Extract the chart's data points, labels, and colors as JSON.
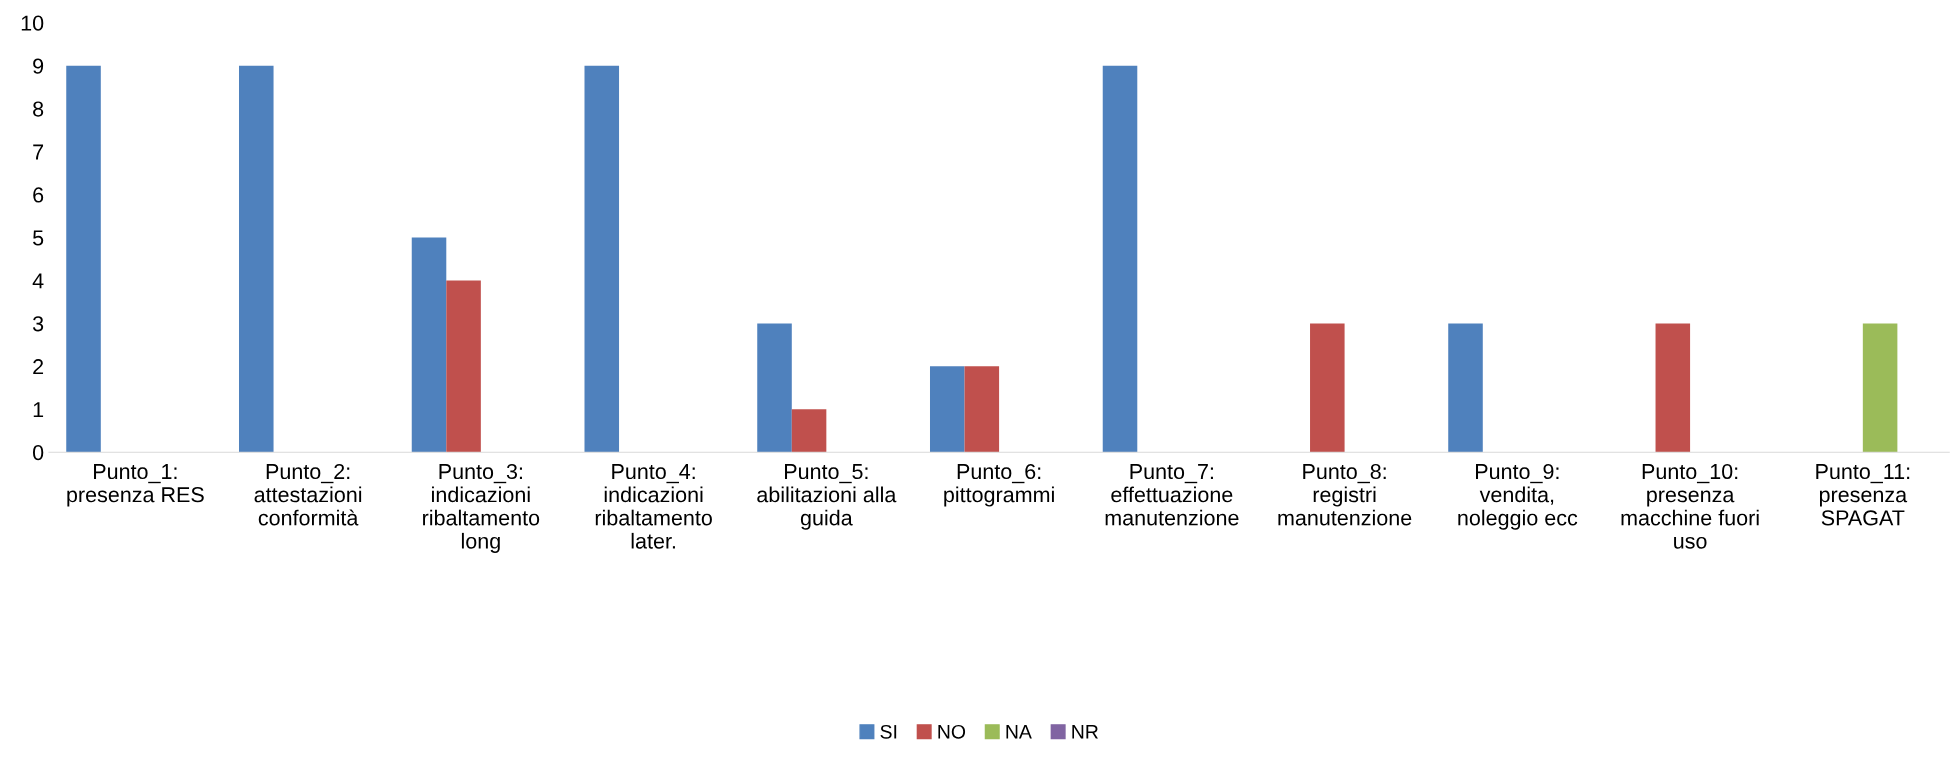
{
  "chart_data": {
    "type": "bar",
    "categories": [
      "Punto_1:\npresenza RES",
      "Punto_2:\nattestazioni\nconformità",
      "Punto_3:\nindicazioni\nribaltamento\nlong",
      "Punto_4:\nindicazioni\nribaltamento\nlater.",
      "Punto_5:\nabilitazioni alla\nguida",
      "Punto_6:\npittogrammi",
      "Punto_7:\neffettuazione\nmanutenzione",
      "Punto_8:\nregistri\nmanutenzione",
      "Punto_9:\nvendita,\nnoleggio ecc",
      "Punto_10:\npresenza\nmacchine fuori\nuso",
      "Punto_11:\npresenza\nSPAGAT"
    ],
    "series": [
      {
        "name": "SI",
        "color": "#4f81bd",
        "values": [
          9,
          9,
          5,
          9,
          3,
          2,
          9,
          0,
          3,
          0,
          0
        ]
      },
      {
        "name": "NO",
        "color": "#c0504d",
        "values": [
          0,
          0,
          4,
          0,
          1,
          2,
          0,
          3,
          0,
          3,
          0
        ]
      },
      {
        "name": "NA",
        "color": "#9bbb59",
        "values": [
          0,
          0,
          0,
          0,
          0,
          0,
          0,
          0,
          0,
          0,
          3
        ]
      },
      {
        "name": "NR",
        "color": "#8064a2",
        "values": [
          0,
          0,
          0,
          0,
          0,
          0,
          0,
          0,
          0,
          0,
          0
        ]
      }
    ],
    "ylim": [
      0,
      10
    ],
    "yticks": [
      0,
      1,
      2,
      3,
      4,
      5,
      6,
      7,
      8,
      9,
      10
    ],
    "grid": false,
    "legend": "bottom"
  }
}
